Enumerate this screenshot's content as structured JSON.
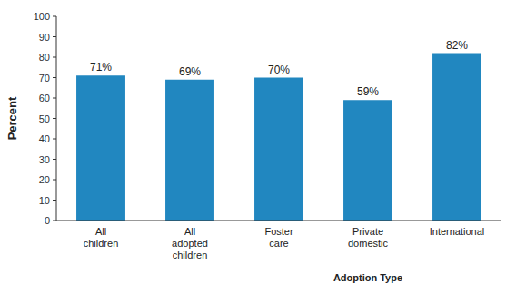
{
  "chart_data": {
    "type": "bar",
    "categories": [
      "All\nchildren",
      "All\nadopted\nchildren",
      "Foster\ncare",
      "Private\ndomestic",
      "International"
    ],
    "values": [
      71,
      69,
      70,
      59,
      82
    ],
    "value_labels": [
      "71%",
      "69%",
      "70%",
      "59%",
      "82%"
    ],
    "data_labels": true,
    "color": "#2187c0",
    "ylabel": "Percent",
    "ylim": [
      0,
      100
    ],
    "yticks": [
      0,
      10,
      20,
      30,
      40,
      50,
      60,
      70,
      80,
      90,
      100
    ],
    "grid": false,
    "annotations": [
      {
        "text": "Adoption Type"
      }
    ]
  }
}
